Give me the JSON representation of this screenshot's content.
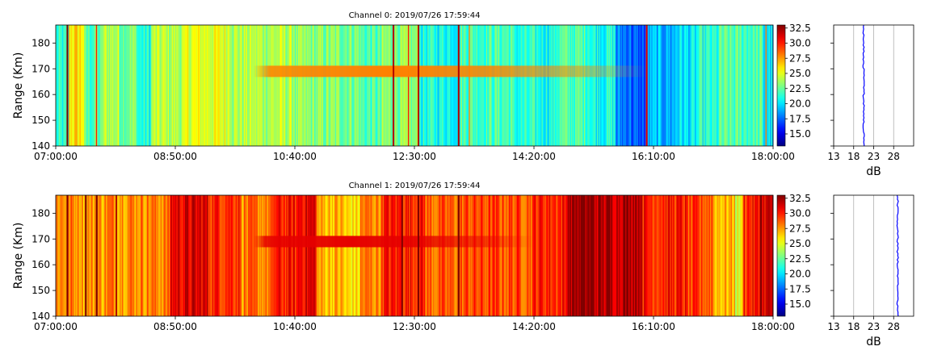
{
  "chart_data": [
    {
      "type": "heatmap",
      "title": "Channel 0: 2019/07/26 17:59:44",
      "xlabel": "",
      "ylabel": "Range (Km)",
      "xticks": [
        "07:00:00",
        "08:50:00",
        "10:40:00",
        "12:30:00",
        "14:20:00",
        "16:10:00",
        "18:00:00"
      ],
      "xrange_minutes": [
        420,
        1080
      ],
      "yticks": [
        140,
        150,
        160,
        170,
        180
      ],
      "ylim": [
        140,
        187
      ],
      "colorbar": {
        "colormap": "jet",
        "range": [
          13,
          33
        ],
        "ticks": [
          "15.0",
          "17.5",
          "20.0",
          "22.5",
          "25.0",
          "27.5",
          "30.0",
          "32.5"
        ]
      },
      "base_level": 21,
      "time_segments": [
        {
          "start": 420,
          "end": 432,
          "value": 21
        },
        {
          "start": 432,
          "end": 446,
          "value": 26
        },
        {
          "start": 446,
          "end": 463,
          "value": 22
        },
        {
          "start": 463,
          "end": 478,
          "value": 24
        },
        {
          "start": 478,
          "end": 495,
          "value": 23
        },
        {
          "start": 495,
          "end": 508,
          "value": 21
        },
        {
          "start": 508,
          "end": 540,
          "value": 24
        },
        {
          "start": 540,
          "end": 582,
          "value": 25
        },
        {
          "start": 582,
          "end": 600,
          "value": 24
        },
        {
          "start": 600,
          "end": 640,
          "value": 24
        },
        {
          "start": 640,
          "end": 700,
          "value": 23
        },
        {
          "start": 700,
          "end": 720,
          "value": 22
        },
        {
          "start": 720,
          "end": 755,
          "value": 23
        },
        {
          "start": 755,
          "end": 792,
          "value": 21
        },
        {
          "start": 792,
          "end": 840,
          "value": 22
        },
        {
          "start": 840,
          "end": 880,
          "value": 21
        },
        {
          "start": 880,
          "end": 912,
          "value": 22
        },
        {
          "start": 912,
          "end": 935,
          "value": 21
        },
        {
          "start": 935,
          "end": 950,
          "value": 18
        },
        {
          "start": 950,
          "end": 965,
          "value": 17
        },
        {
          "start": 965,
          "end": 990,
          "value": 19
        },
        {
          "start": 990,
          "end": 1010,
          "value": 20
        },
        {
          "start": 1010,
          "end": 1030,
          "value": 21
        },
        {
          "start": 1030,
          "end": 1070,
          "value": 22
        },
        {
          "start": 1070,
          "end": 1080,
          "value": 20
        }
      ],
      "spikes": [
        {
          "t": 430,
          "value": 33
        },
        {
          "t": 457,
          "value": 30
        },
        {
          "t": 730,
          "value": 32
        },
        {
          "t": 744,
          "value": 30
        },
        {
          "t": 753,
          "value": 32
        },
        {
          "t": 790,
          "value": 32
        },
        {
          "t": 800,
          "value": 28
        },
        {
          "t": 963,
          "value": 31
        },
        {
          "t": 1073,
          "value": 28
        }
      ],
      "echo_band": {
        "t_start": 602,
        "t_end": 965,
        "range_km": 169,
        "width_km": 2.2,
        "peak_value": 28
      },
      "profile": {
        "xlabel": "dB",
        "xticks": [
          13,
          18,
          23,
          28
        ],
        "xlim": [
          13,
          33
        ],
        "value": 20.5,
        "range_km": [
          140,
          187
        ]
      }
    },
    {
      "type": "heatmap",
      "title": "Channel 1: 2019/07/26 17:59:44",
      "xlabel": "",
      "ylabel": "Range (Km)",
      "xticks": [
        "07:00:00",
        "08:50:00",
        "10:40:00",
        "12:30:00",
        "14:20:00",
        "16:10:00",
        "18:00:00"
      ],
      "xrange_minutes": [
        420,
        1080
      ],
      "yticks": [
        140,
        150,
        160,
        170,
        180
      ],
      "ylim": [
        140,
        187
      ],
      "colorbar": {
        "colormap": "jet",
        "range": [
          13,
          33
        ],
        "ticks": [
          "15.0",
          "17.5",
          "20.0",
          "22.5",
          "25.0",
          "27.5",
          "30.0",
          "32.5"
        ]
      },
      "base_level": 28.5,
      "time_segments": [
        {
          "start": 420,
          "end": 445,
          "value": 28
        },
        {
          "start": 445,
          "end": 465,
          "value": 27.5
        },
        {
          "start": 465,
          "end": 525,
          "value": 28
        },
        {
          "start": 525,
          "end": 560,
          "value": 31
        },
        {
          "start": 560,
          "end": 590,
          "value": 30
        },
        {
          "start": 590,
          "end": 620,
          "value": 28
        },
        {
          "start": 620,
          "end": 643,
          "value": 30
        },
        {
          "start": 643,
          "end": 660,
          "value": 31
        },
        {
          "start": 660,
          "end": 685,
          "value": 27
        },
        {
          "start": 685,
          "end": 700,
          "value": 26
        },
        {
          "start": 700,
          "end": 720,
          "value": 28
        },
        {
          "start": 720,
          "end": 760,
          "value": 30
        },
        {
          "start": 760,
          "end": 795,
          "value": 28.5
        },
        {
          "start": 795,
          "end": 860,
          "value": 29
        },
        {
          "start": 860,
          "end": 890,
          "value": 30
        },
        {
          "start": 890,
          "end": 915,
          "value": 32.5
        },
        {
          "start": 915,
          "end": 940,
          "value": 32
        },
        {
          "start": 940,
          "end": 960,
          "value": 32.5
        },
        {
          "start": 960,
          "end": 1000,
          "value": 30
        },
        {
          "start": 1000,
          "end": 1025,
          "value": 29
        },
        {
          "start": 1025,
          "end": 1045,
          "value": 27
        },
        {
          "start": 1045,
          "end": 1052,
          "value": 25
        },
        {
          "start": 1052,
          "end": 1068,
          "value": 30
        },
        {
          "start": 1068,
          "end": 1080,
          "value": 31
        }
      ],
      "spikes": [
        {
          "t": 430,
          "value": 33
        },
        {
          "t": 447,
          "value": 33
        },
        {
          "t": 457,
          "value": 33
        },
        {
          "t": 475,
          "value": 32
        },
        {
          "t": 738,
          "value": 33
        },
        {
          "t": 753,
          "value": 33
        },
        {
          "t": 790,
          "value": 33
        },
        {
          "t": 1068,
          "value": 33
        },
        {
          "t": 1076,
          "value": 32
        }
      ],
      "echo_band": {
        "t_start": 602,
        "t_end": 860,
        "range_km": 169,
        "width_km": 2.2,
        "peak_value": 31
      },
      "profile": {
        "xlabel": "dB",
        "xticks": [
          13,
          18,
          23,
          28
        ],
        "xlim": [
          13,
          33
        ],
        "value": 29,
        "range_km": [
          140,
          187
        ]
      }
    }
  ]
}
